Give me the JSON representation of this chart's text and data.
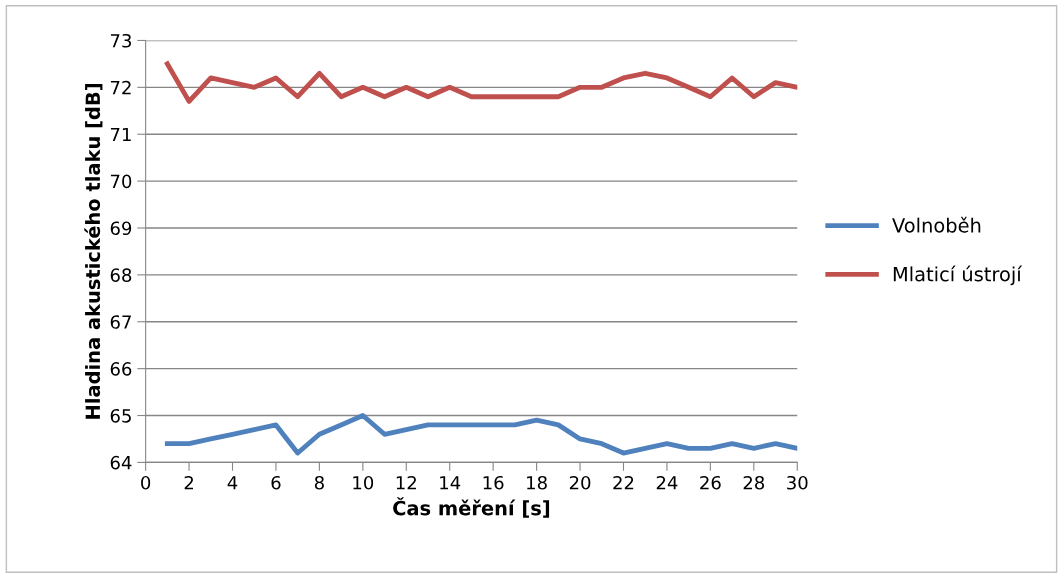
{
  "chart_data": {
    "type": "line",
    "xlabel": "Čas měření [s]",
    "ylabel": "Hladina akustického tlaku [dB]",
    "x": [
      1,
      2,
      3,
      4,
      5,
      6,
      7,
      8,
      9,
      10,
      11,
      12,
      13,
      14,
      15,
      16,
      17,
      18,
      19,
      20,
      21,
      22,
      23,
      24,
      25,
      26,
      27,
      28,
      29,
      30
    ],
    "series": [
      {
        "name": "Volnoběh",
        "color": "#4f81bd",
        "values": [
          64.4,
          64.4,
          64.5,
          64.6,
          64.7,
          64.8,
          64.2,
          64.6,
          64.8,
          65.0,
          64.6,
          64.7,
          64.8,
          64.8,
          64.8,
          64.8,
          64.8,
          64.9,
          64.8,
          64.5,
          64.4,
          64.2,
          64.3,
          64.4,
          64.3,
          64.3,
          64.4,
          64.3,
          64.4,
          64.3
        ]
      },
      {
        "name": "Mlaticí ústrojí",
        "color": "#c0504d",
        "values": [
          72.5,
          71.7,
          72.2,
          72.1,
          72.0,
          72.2,
          71.8,
          72.3,
          71.8,
          72.0,
          71.8,
          72.0,
          71.8,
          72.0,
          71.8,
          71.8,
          71.8,
          71.8,
          71.8,
          72.0,
          72.0,
          72.2,
          72.3,
          72.2,
          72.0,
          71.8,
          72.2,
          71.8,
          72.1,
          72.0
        ]
      }
    ],
    "xlim": [
      0,
      30
    ],
    "xticks": [
      0,
      2,
      4,
      6,
      8,
      10,
      12,
      14,
      16,
      18,
      20,
      22,
      24,
      26,
      28,
      30
    ],
    "ylim": [
      64,
      73
    ],
    "yticks": [
      64,
      65,
      66,
      67,
      68,
      69,
      70,
      71,
      72,
      73
    ],
    "grid": "y",
    "legend": "right",
    "marker": "none",
    "line_style": "solid"
  }
}
